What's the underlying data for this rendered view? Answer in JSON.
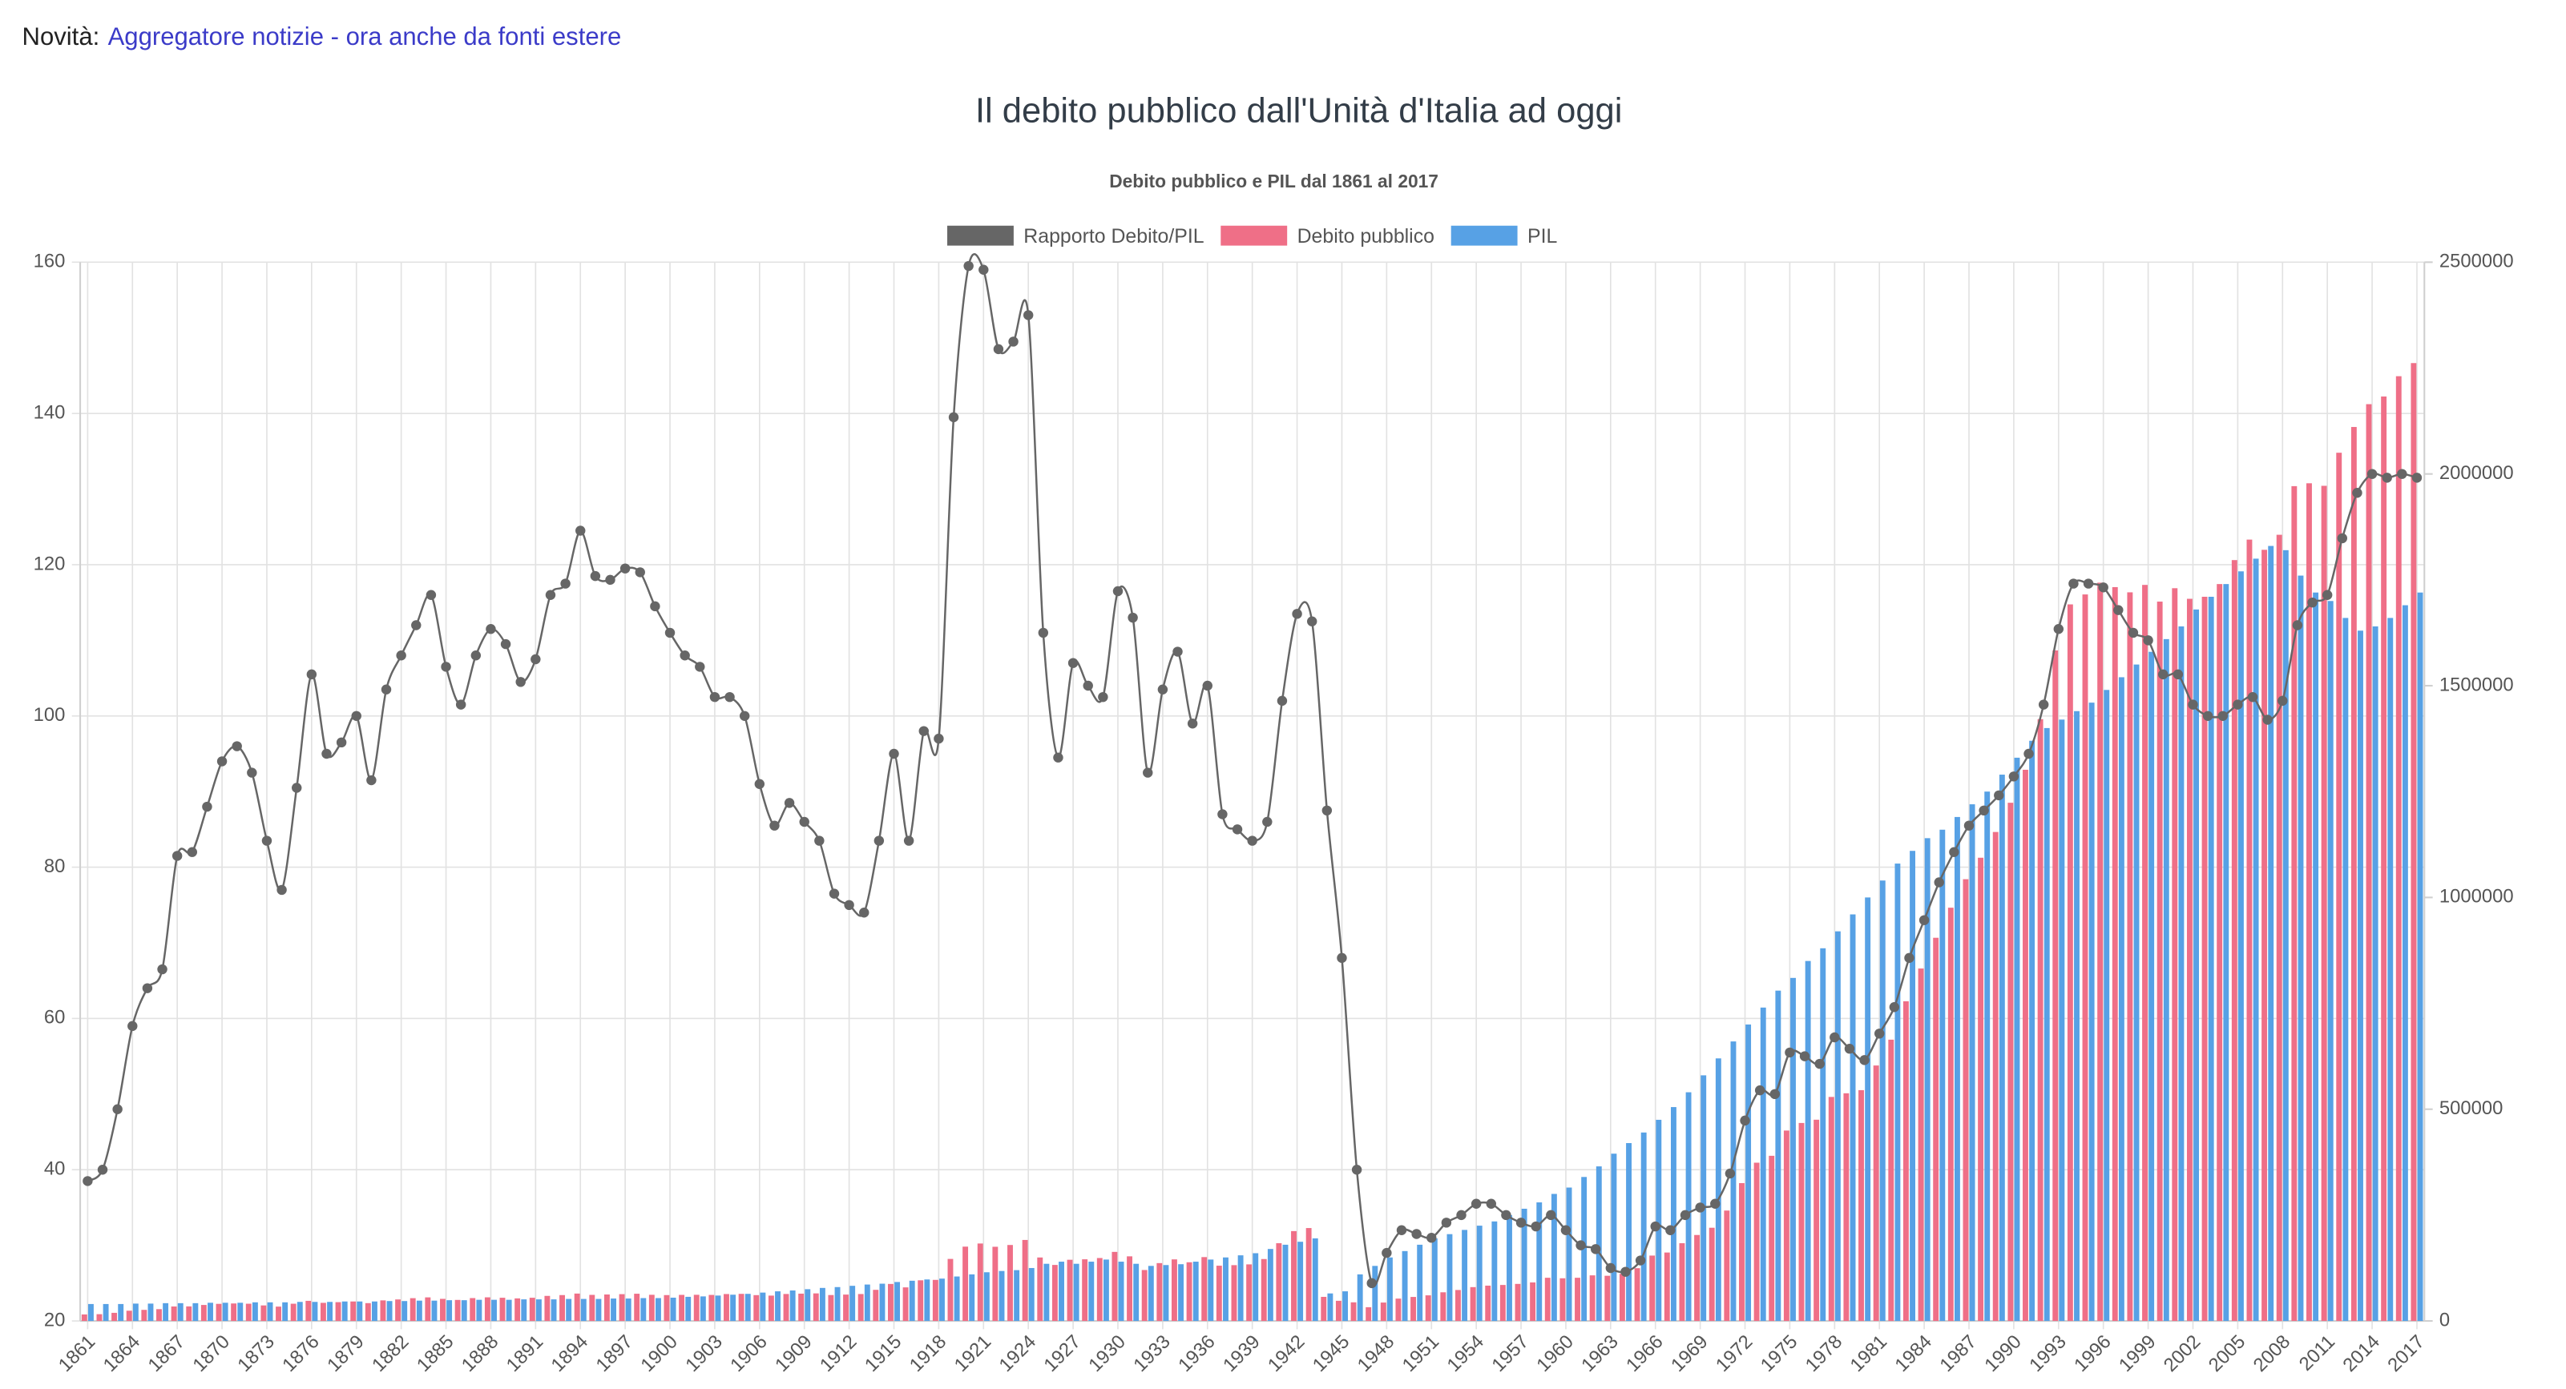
{
  "header": {
    "label": "Novità:",
    "link": "Aggregatore notizie - ora anche da fonti estere"
  },
  "page_title": "Il debito pubblico dall'Unità d'Italia ad oggi",
  "chart_data": {
    "type": "bar",
    "title": "Debito pubblico e PIL dal 1861 al 2017",
    "categories": [
      "1861",
      null,
      null,
      "1864",
      null,
      null,
      "1867",
      null,
      null,
      "1870",
      null,
      null,
      "1873",
      null,
      null,
      "1876",
      null,
      null,
      "1879",
      null,
      null,
      "1882",
      null,
      null,
      "1885",
      null,
      null,
      "1888",
      null,
      null,
      "1891",
      null,
      null,
      "1894",
      null,
      null,
      "1897",
      null,
      null,
      "1900",
      null,
      null,
      "1903",
      null,
      null,
      "1906",
      null,
      null,
      "1909",
      null,
      null,
      "1912",
      null,
      null,
      "1915",
      null,
      null,
      "1918",
      null,
      null,
      "1921",
      null,
      null,
      "1924",
      null,
      null,
      "1927",
      null,
      null,
      "1930",
      null,
      null,
      "1933",
      null,
      null,
      "1936",
      null,
      null,
      "1939",
      null,
      null,
      "1942",
      null,
      null,
      "1945",
      null,
      null,
      "1948",
      null,
      null,
      "1951",
      null,
      null,
      "1954",
      null,
      null,
      "1957",
      null,
      null,
      "1960",
      null,
      null,
      "1963",
      null,
      null,
      "1966",
      null,
      null,
      "1969",
      null,
      null,
      "1972",
      null,
      null,
      "1975",
      null,
      null,
      "1978",
      null,
      null,
      "1981",
      null,
      null,
      "1984",
      null,
      null,
      "1987",
      null,
      null,
      "1990",
      null,
      null,
      "1993",
      null,
      null,
      "1996",
      null,
      null,
      "1999",
      null,
      null,
      "2002",
      null,
      null,
      "2005",
      null,
      null,
      "2008",
      null,
      null,
      "2011",
      null,
      null,
      "2014",
      null,
      null,
      "2017"
    ],
    "series": [
      {
        "name": "Rapporto Debito/PIL",
        "type": "line",
        "axis": "y",
        "color": "#666666",
        "values": [
          38.5,
          40,
          48,
          59,
          64,
          66.5,
          81.5,
          82,
          88,
          94,
          96,
          92.5,
          83.5,
          77,
          90.5,
          105.5,
          95,
          96.5,
          100,
          91.5,
          103.5,
          108,
          112,
          116,
          106.5,
          101.5,
          108,
          111.5,
          109.5,
          104.5,
          107.5,
          116,
          117.5,
          124.5,
          118.5,
          118,
          119.5,
          119,
          114.5,
          111,
          108,
          106.5,
          102.5,
          102.5,
          100,
          91,
          85.5,
          88.5,
          86,
          83.5,
          76.5,
          75,
          74,
          83.5,
          95,
          83.5,
          98,
          97,
          139.5,
          159.5,
          159,
          148.5,
          149.5,
          153,
          111,
          94.5,
          107,
          104,
          102.5,
          116.5,
          113,
          92.5,
          103.5,
          108.5,
          99,
          104,
          87,
          85,
          83.5,
          86,
          102,
          113.5,
          112.5,
          87.5,
          68,
          40,
          25,
          29,
          32,
          31.5,
          31,
          33,
          34,
          35.5,
          35.5,
          34,
          33,
          32.5,
          34,
          32,
          30,
          29.5,
          27,
          26.5,
          28,
          32.5,
          32,
          34,
          35,
          35.5,
          39.5,
          46.5,
          50.5,
          50,
          55.5,
          55,
          54,
          57.5,
          56,
          54.5,
          58,
          61.5,
          68,
          73,
          78,
          82,
          85.5,
          87.5,
          89.5,
          92,
          95,
          101.5,
          111.5,
          117.5,
          117.5,
          117,
          114,
          111,
          110,
          105.5,
          105.5,
          101.5,
          100,
          100,
          101.5,
          102.5,
          99.5,
          102,
          112,
          115,
          116,
          123.5,
          129.5,
          132,
          131.5,
          132,
          131.5
        ]
      },
      {
        "name": "Debito pubblico",
        "type": "bar",
        "axis": "y2",
        "color": "#ef6f87",
        "values": [
          15400,
          16000,
          19200,
          24200,
          26200,
          27900,
          34200,
          34400,
          37800,
          40400,
          41300,
          40700,
          36700,
          33900,
          40700,
          47500,
          42800,
          44400,
          46000,
          42100,
          48600,
          50800,
          53800,
          55700,
          52200,
          49700,
          54000,
          55800,
          54800,
          53300,
          54800,
          59200,
          61100,
          64700,
          61600,
          62500,
          63300,
          64300,
          61800,
          61100,
          61600,
          61800,
          61500,
          63600,
          64000,
          61000,
          59900,
          63700,
          64500,
          65100,
          61200,
          62300,
          63600,
          73500,
          87400,
          79300,
          96000,
          97000,
          146500,
          175500,
          182900,
          175200,
          179400,
          191300,
          149900,
          132300,
          144500,
          145600,
          148600,
          163100,
          152600,
          120300,
          136600,
          145400,
          138600,
          150800,
          130500,
          131800,
          133600,
          146200,
          183600,
          212200,
          219400,
          56900,
          47600,
          44000,
          32500,
          43500,
          52800,
          56700,
          60500,
          67700,
          73100,
          79900,
          83400,
          85000,
          87500,
          91000,
          102000,
          100800,
          102000,
          107700,
          106700,
          111300,
          124600,
          154400,
          161600,
          183600,
          203000,
          220100,
          260700,
          325500,
          373700,
          390000,
          449600,
          467500,
          475200,
          529000,
          537600,
          545000,
          603200,
          664200,
          754800,
          832200,
          904800,
          975800,
          1043100,
          1093800,
          1154600,
          1223600,
          1301500,
          1421000,
          1583300,
          1692000,
          1715500,
          1743300,
          1732800,
          1720500,
          1738000,
          1698600,
          1730200,
          1705200,
          1710000,
          1740000,
          1796600,
          1845000,
          1820900,
          1856400,
          1971200,
          1978000,
          1972000,
          2050100,
          2110900,
          2164800,
          2182900,
          2230800,
          2261800
        ]
      },
      {
        "name": "PIL",
        "type": "bar",
        "axis": "y2",
        "color": "#57a1e5",
        "values": [
          40000,
          40000,
          40000,
          41000,
          41000,
          42000,
          42000,
          42000,
          43000,
          43000,
          43000,
          44000,
          44000,
          44000,
          45000,
          45000,
          45000,
          46000,
          46000,
          46000,
          47000,
          47000,
          48000,
          48000,
          49000,
          49000,
          50000,
          50000,
          50000,
          51000,
          51000,
          51000,
          52000,
          52000,
          52000,
          53000,
          53000,
          54000,
          54000,
          55000,
          57000,
          58000,
          60000,
          62000,
          64000,
          67000,
          70000,
          72000,
          75000,
          78000,
          80000,
          83000,
          86000,
          88000,
          92000,
          95000,
          98000,
          100000,
          105000,
          110000,
          115000,
          118000,
          120000,
          125000,
          135000,
          140000,
          135000,
          140000,
          145000,
          140000,
          135000,
          130000,
          132000,
          134000,
          140000,
          145000,
          150000,
          155000,
          160000,
          170000,
          180000,
          187000,
          195000,
          65000,
          70000,
          110000,
          130000,
          150000,
          165000,
          180000,
          195000,
          205000,
          215000,
          225000,
          235000,
          250000,
          265000,
          280000,
          300000,
          315000,
          340000,
          365000,
          395000,
          420000,
          445000,
          475000,
          505000,
          540000,
          580000,
          620000,
          660000,
          700000,
          740000,
          780000,
          810000,
          850000,
          880000,
          920000,
          960000,
          1000000,
          1040000,
          1080000,
          1110000,
          1140000,
          1160000,
          1190000,
          1220000,
          1250000,
          1290000,
          1330000,
          1370000,
          1400000,
          1420000,
          1440000,
          1460000,
          1490000,
          1520000,
          1550000,
          1580000,
          1610000,
          1640000,
          1680000,
          1710000,
          1740000,
          1770000,
          1800000,
          1830000,
          1820000,
          1760000,
          1720000,
          1700000,
          1660000,
          1630000,
          1640000,
          1660000,
          1690000,
          1720000
        ]
      }
    ],
    "ylim": [
      20,
      160
    ],
    "yticks": [
      20,
      40,
      60,
      80,
      100,
      120,
      140,
      160
    ],
    "y2lim": [
      0,
      2500000
    ],
    "y2ticks": [
      0,
      500000,
      1000000,
      1500000,
      2000000,
      2500000
    ],
    "grid": true,
    "legend": "top"
  }
}
